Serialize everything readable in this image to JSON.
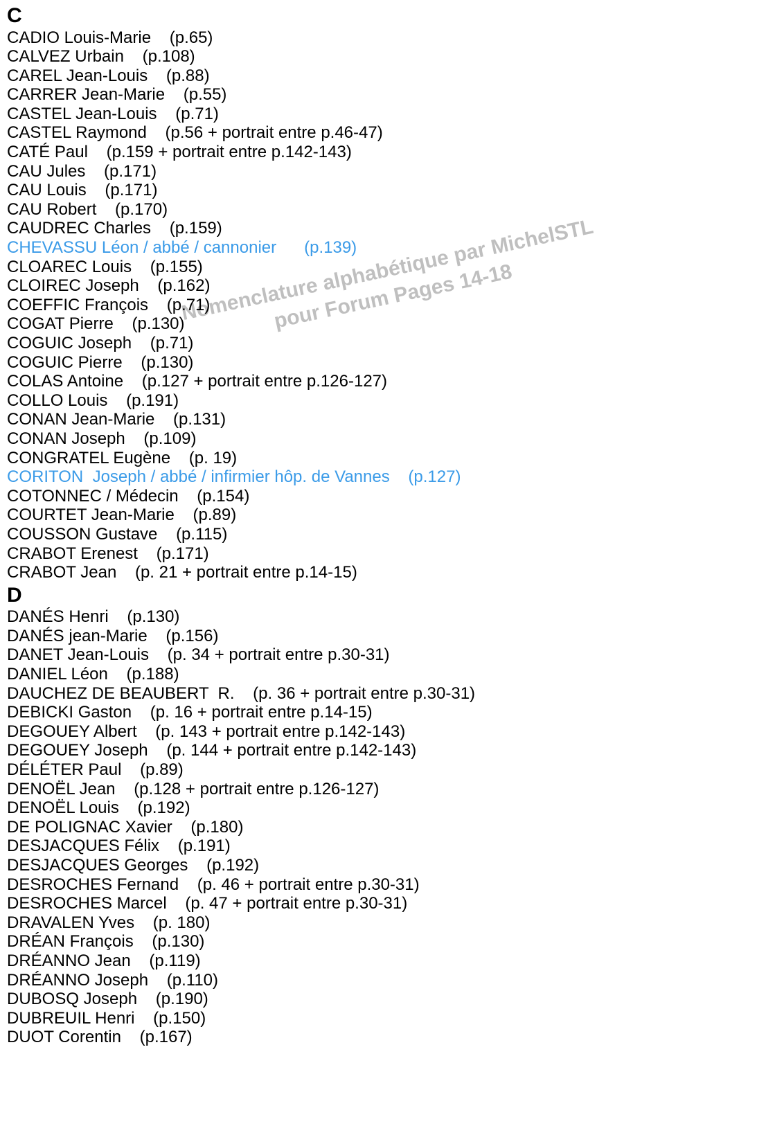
{
  "watermark": {
    "line1": "Nomenclature alphabétique par MichelSTL",
    "line2": "pour Forum Pages 14-18",
    "color": "#b0b0b0"
  },
  "linkColor": "#3b9be8",
  "textColor": "#000000",
  "sections": [
    {
      "letter": "C",
      "entries": [
        {
          "name": "CADIO Louis-Marie",
          "page": "(p.65)",
          "link": false
        },
        {
          "name": "CALVEZ Urbain",
          "page": "(p.108)",
          "link": false
        },
        {
          "name": "CAREL Jean-Louis",
          "page": "(p.88)",
          "link": false
        },
        {
          "name": "CARRER Jean-Marie",
          "page": "(p.55)",
          "link": false
        },
        {
          "name": "CASTEL Jean-Louis",
          "page": "(p.71)",
          "link": false
        },
        {
          "name": "CASTEL Raymond",
          "page": "(p.56 + portrait entre p.46-47)",
          "link": false
        },
        {
          "name": "CATÉ Paul",
          "page": "(p.159 + portrait entre p.142-143)",
          "link": false
        },
        {
          "name": "CAU Jules",
          "page": "(p.171)",
          "link": false
        },
        {
          "name": "CAU Louis",
          "page": "(p.171)",
          "link": false
        },
        {
          "name": "CAU Robert",
          "page": "(p.170)",
          "link": false
        },
        {
          "name": "CAUDREC Charles",
          "page": "(p.159)",
          "link": false
        },
        {
          "name": "CHEVASSU Léon / abbé / cannonier",
          "page": "(p.139)",
          "link": true,
          "gap": "      "
        },
        {
          "name": "CLOAREC Louis",
          "page": "(p.155)",
          "link": false
        },
        {
          "name": "CLOIREC Joseph",
          "page": "(p.162)",
          "link": false
        },
        {
          "name": "COEFFIC François",
          "page": "(p.71)",
          "link": false
        },
        {
          "name": "COGAT Pierre",
          "page": "(p.130)",
          "link": false
        },
        {
          "name": "COGUIC Joseph",
          "page": "(p.71)",
          "link": false
        },
        {
          "name": "COGUIC Pierre",
          "page": "(p.130)",
          "link": false
        },
        {
          "name": "COLAS Antoine",
          "page": "(p.127 + portrait entre p.126-127)",
          "link": false
        },
        {
          "name": "COLLO Louis",
          "page": "(p.191)",
          "link": false
        },
        {
          "name": "CONAN Jean-Marie",
          "page": "(p.131)",
          "link": false
        },
        {
          "name": "CONAN Joseph",
          "page": "(p.109)",
          "link": false
        },
        {
          "name": "CONGRATEL Eugène",
          "page": "(p. 19)",
          "link": false
        },
        {
          "name": "CORITON  Joseph / abbé / infirmier hôp. de Vannes",
          "page": "(p.127)",
          "link": true
        },
        {
          "name": "COTONNEC / Médecin",
          "page": "(p.154)",
          "link": false
        },
        {
          "name": "COURTET Jean-Marie",
          "page": "(p.89)",
          "link": false
        },
        {
          "name": "COUSSON Gustave",
          "page": "(p.115)",
          "link": false
        },
        {
          "name": "CRABOT Erenest",
          "page": "(p.171)",
          "link": false
        },
        {
          "name": "CRABOT Jean",
          "page": "(p. 21 + portrait entre p.14-15)",
          "link": false
        }
      ]
    },
    {
      "letter": "D",
      "entries": [
        {
          "name": "DANÉS Henri",
          "page": "(p.130)",
          "link": false
        },
        {
          "name": "DANÉS jean-Marie",
          "page": "(p.156)",
          "link": false
        },
        {
          "name": "DANET Jean-Louis",
          "page": "(p. 34 + portrait entre p.30-31)",
          "link": false
        },
        {
          "name": "DANIEL Léon",
          "page": "(p.188)",
          "link": false
        },
        {
          "name": "DAUCHEZ DE BEAUBERT  R.",
          "page": "(p. 36 + portrait entre p.30-31)",
          "link": false
        },
        {
          "name": "DEBICKI Gaston",
          "page": "(p. 16 + portrait entre p.14-15)",
          "link": false
        },
        {
          "name": "DEGOUEY Albert",
          "page": "(p. 143 + portrait entre p.142-143)",
          "link": false
        },
        {
          "name": "DEGOUEY Joseph",
          "page": "(p. 144 + portrait entre p.142-143)",
          "link": false
        },
        {
          "name": "DÉLÉTER Paul",
          "page": "(p.89)",
          "link": false
        },
        {
          "name": "DENOËL Jean",
          "page": "(p.128 + portrait entre p.126-127)",
          "link": false
        },
        {
          "name": "DENOËL Louis",
          "page": "(p.192)",
          "link": false
        },
        {
          "name": "DE POLIGNAC Xavier",
          "page": "(p.180)",
          "link": false
        },
        {
          "name": "DESJACQUES Félix",
          "page": "(p.191)",
          "link": false
        },
        {
          "name": "DESJACQUES Georges",
          "page": "(p.192)",
          "link": false
        },
        {
          "name": "DESROCHES Fernand",
          "page": "(p. 46 + portrait entre p.30-31)",
          "link": false
        },
        {
          "name": "DESROCHES Marcel",
          "page": "(p. 47 + portrait entre p.30-31)",
          "link": false
        },
        {
          "name": "DRAVALEN Yves",
          "page": "(p. 180)",
          "link": false
        },
        {
          "name": "DRÉAN François",
          "page": "(p.130)",
          "link": false
        },
        {
          "name": "DRÉANNO Jean",
          "page": "(p.119)",
          "link": false
        },
        {
          "name": "DRÉANNO Joseph",
          "page": "(p.110)",
          "link": false
        },
        {
          "name": "DUBOSQ Joseph",
          "page": "(p.190)",
          "link": false
        },
        {
          "name": "DUBREUIL Henri",
          "page": "(p.150)",
          "link": false
        },
        {
          "name": "DUOT Corentin",
          "page": "(p.167)",
          "link": false
        }
      ]
    }
  ]
}
